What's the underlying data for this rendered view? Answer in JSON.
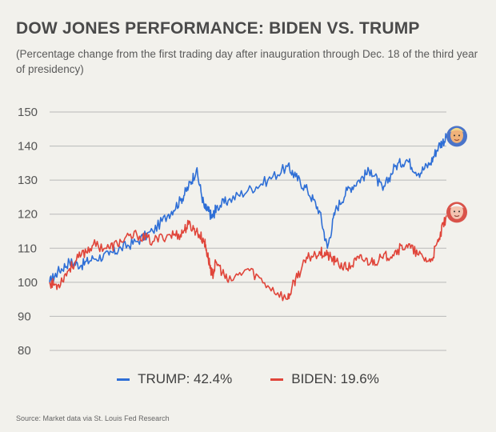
{
  "title": "DOW JONES PERFORMANCE: BIDEN VS. TRUMP",
  "subtitle": "(Percentage change from the first trading day after inauguration through Dec. 18 of the third year of presidency)",
  "source": "Source: Market data via St. Louis Fed Research",
  "legend": {
    "trump": "TRUMP: 42.4%",
    "biden": "BIDEN: 19.6%"
  },
  "colors": {
    "trump": "#2f6fd6",
    "biden": "#e0453a",
    "grid": "#b9b9b9",
    "background": "#f2f1ec"
  },
  "icons": {
    "trump_marker": "trump-portrait-icon",
    "biden_marker": "biden-portrait-icon"
  },
  "chart_data": {
    "type": "line",
    "title": "DOW JONES PERFORMANCE: BIDEN VS. TRUMP",
    "xlabel": "",
    "ylabel": "",
    "ylim": [
      80,
      150
    ],
    "yticks": [
      80,
      90,
      100,
      110,
      120,
      130,
      140,
      150
    ],
    "grid": true,
    "legend_position": "bottom",
    "x": [
      0,
      0.02,
      0.05,
      0.08,
      0.11,
      0.15,
      0.18,
      0.22,
      0.26,
      0.3,
      0.33,
      0.35,
      0.37,
      0.39,
      0.4,
      0.41,
      0.42,
      0.45,
      0.5,
      0.55,
      0.6,
      0.62,
      0.65,
      0.68,
      0.7,
      0.72,
      0.75,
      0.78,
      0.81,
      0.84,
      0.87,
      0.9,
      0.93,
      0.96,
      0.98,
      1.0
    ],
    "series": [
      {
        "name": "TRUMP",
        "values": [
          100,
          103,
          106,
          105,
          107,
          108,
          110,
          112,
          115,
          120,
          124,
          128,
          133,
          122,
          121,
          119,
          122,
          124,
          127,
          130,
          134,
          131,
          127,
          121,
          110,
          121,
          127,
          130,
          133,
          127,
          134,
          136,
          132,
          135,
          140,
          142.4
        ]
      },
      {
        "name": "BIDEN",
        "values": [
          100,
          99,
          104,
          108,
          111,
          110,
          112,
          114,
          112,
          114,
          114,
          117,
          115,
          112,
          107,
          102,
          106,
          100,
          104,
          99,
          95,
          101,
          107,
          109,
          108,
          106,
          104,
          107,
          106,
          107,
          109,
          111,
          108,
          106,
          112,
          119.6
        ]
      }
    ]
  }
}
